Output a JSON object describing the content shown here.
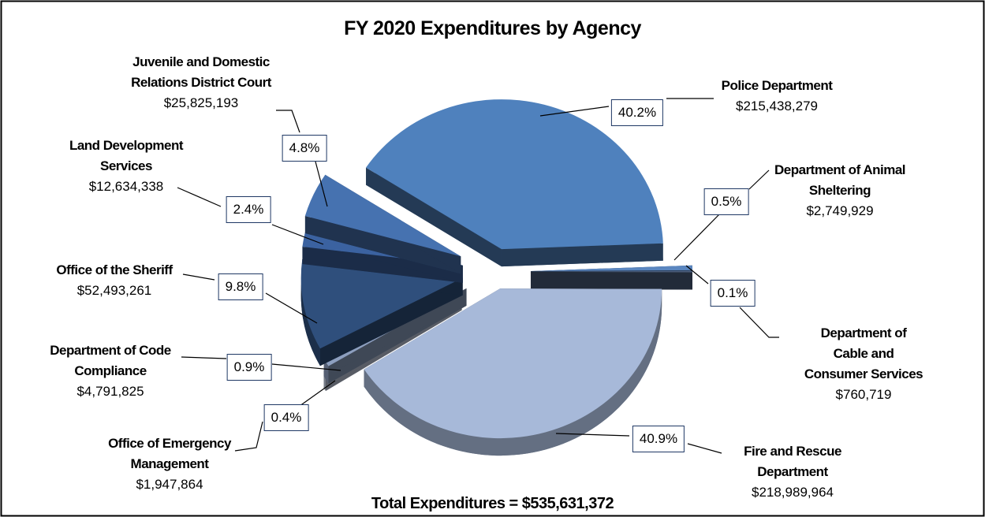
{
  "chart_data": {
    "type": "pie",
    "title": "FY 2020 Expenditures by Agency",
    "categories": [
      "Police Department",
      "Department of Animal\nSheltering",
      "Department of Cable and\nConsumer Services",
      "Fire and Rescue\nDepartment",
      "Office of Emergency\nManagement",
      "Department of Code\nCompliance",
      "Office of the Sheriff",
      "Land Development\nServices",
      "Juvenile and Domestic\nRelations District Court"
    ],
    "values": [
      215438279,
      2749929,
      760719,
      218989964,
      1947864,
      4791825,
      52493261,
      12634338,
      25825193
    ],
    "value_labels": [
      "$215,438,279",
      "$2,749,929",
      "$760,719",
      "$218,989,964",
      "$1,947,864",
      "$4,791,825",
      "$52,493,261",
      "$12,634,338",
      "$25,825,193"
    ],
    "percent_labels": [
      "40.2%",
      "0.5%",
      "0.1%",
      "40.9%",
      "0.4%",
      "0.9%",
      "9.8%",
      "2.4%",
      "4.8%"
    ],
    "colors": [
      "#4f81bd",
      "#5a86c0",
      "#4c5f7e",
      "#a7b9d9",
      "#c3cde0",
      "#8d9fbf",
      "#2f4f7c",
      "#3b62a0",
      "#4672b0"
    ],
    "total_label": "Total Expenditures = $535,631,372"
  }
}
